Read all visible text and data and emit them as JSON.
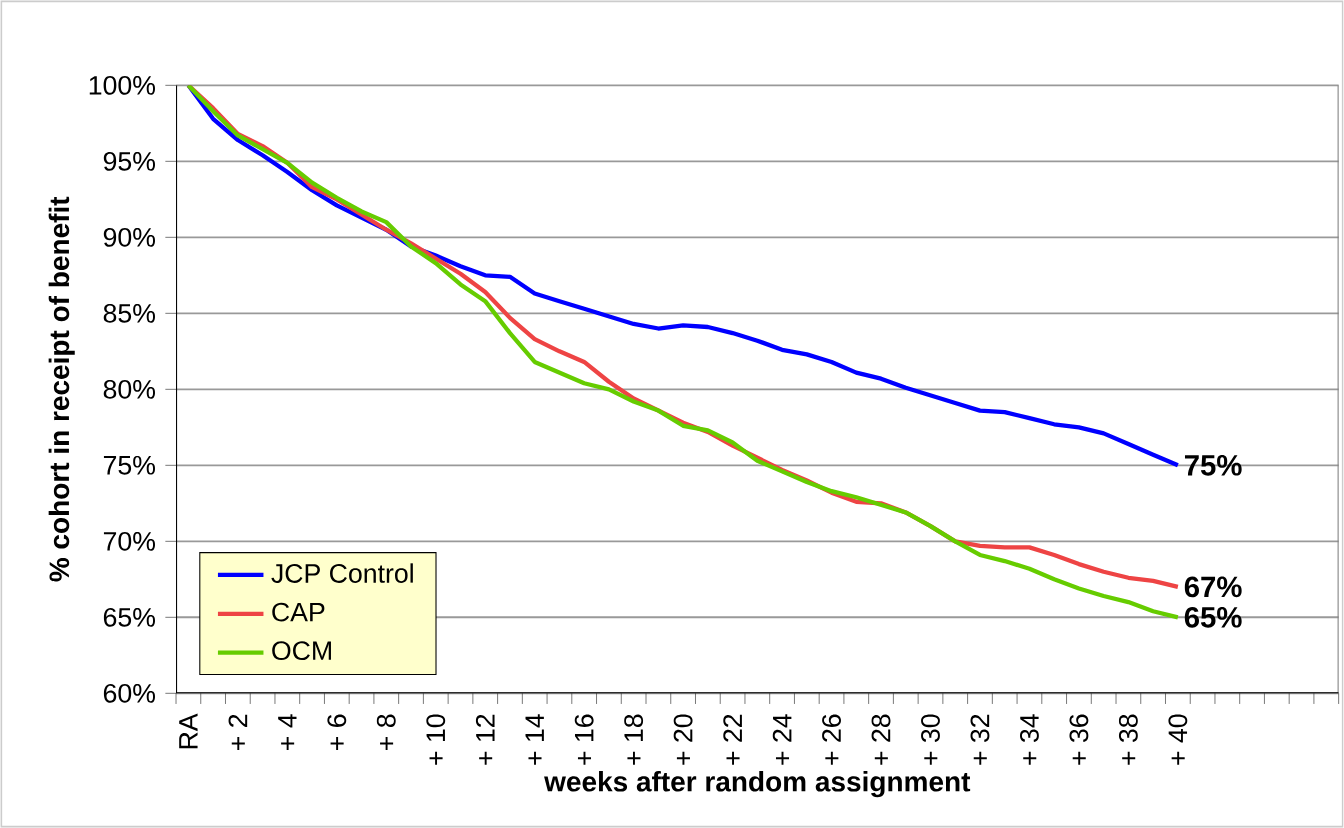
{
  "chart_data": {
    "type": "line",
    "xlabel": "weeks  after random assignment",
    "ylabel": "% cohort in receipt of benefit",
    "categories": [
      "RA",
      null,
      "+ 2",
      null,
      "+ 4",
      null,
      "+ 6",
      null,
      "+ 8",
      null,
      "+ 10",
      null,
      "+ 12",
      null,
      "+ 14",
      null,
      "+ 16",
      null,
      "+ 18",
      null,
      "+ 20",
      null,
      "+ 22",
      null,
      "+ 24",
      null,
      "+ 26",
      null,
      "+ 28",
      null,
      "+ 30",
      null,
      "+ 32",
      null,
      "+ 34",
      null,
      "+ 36",
      null,
      "+ 38",
      null,
      "+ 40",
      null,
      null,
      null,
      null,
      null,
      null
    ],
    "series": [
      {
        "name": "JCP Control",
        "color": "#0000ff",
        "values": [
          100,
          97.8,
          96.4,
          95.4,
          94.3,
          93.1,
          92.1,
          91.3,
          90.5,
          89.4,
          88.8,
          88.1,
          87.5,
          87.4,
          86.3,
          85.8,
          85.3,
          84.8,
          84.3,
          84.0,
          84.2,
          84.1,
          83.7,
          83.2,
          82.6,
          82.3,
          81.8,
          81.1,
          80.7,
          80.1,
          79.6,
          79.1,
          78.6,
          78.5,
          78.1,
          77.7,
          77.5,
          77.1,
          76.4,
          75.7,
          75,
          null,
          null,
          null,
          null,
          null,
          null
        ],
        "value_labels": [
          null,
          null,
          null,
          null,
          null,
          null,
          null,
          null,
          null,
          null,
          null,
          null,
          null,
          null,
          null,
          null,
          null,
          null,
          null,
          null,
          null,
          null,
          null,
          null,
          null,
          null,
          null,
          null,
          null,
          null,
          null,
          null,
          null,
          null,
          null,
          null,
          null,
          null,
          null,
          null,
          "75%",
          null,
          null,
          null,
          null,
          null,
          null
        ]
      },
      {
        "name": "CAP",
        "color": "#ee4444",
        "values": [
          100,
          98.5,
          96.8,
          96.0,
          94.9,
          93.3,
          92.5,
          91.5,
          90.5,
          89.6,
          88.6,
          87.6,
          86.4,
          84.7,
          83.3,
          82.5,
          81.8,
          80.5,
          79.4,
          78.6,
          77.8,
          77.2,
          76.3,
          75.5,
          74.7,
          74.0,
          73.2,
          72.6,
          72.5,
          71.9,
          71.0,
          70.0,
          69.7,
          69.6,
          69.6,
          69.1,
          68.5,
          68.0,
          67.6,
          67.4,
          67,
          null,
          null,
          null,
          null,
          null,
          null
        ],
        "value_labels": [
          null,
          null,
          null,
          null,
          null,
          null,
          null,
          null,
          null,
          null,
          null,
          null,
          null,
          null,
          null,
          null,
          null,
          null,
          null,
          null,
          null,
          null,
          null,
          null,
          null,
          null,
          null,
          null,
          null,
          null,
          null,
          null,
          null,
          null,
          null,
          null,
          null,
          null,
          null,
          null,
          "67%",
          null,
          null,
          null,
          null,
          null,
          null
        ]
      },
      {
        "name": "OCM",
        "color": "#66cc00",
        "values": [
          100,
          98.3,
          96.7,
          95.8,
          94.9,
          93.6,
          92.6,
          91.7,
          91.0,
          89.4,
          88.3,
          86.9,
          85.8,
          83.7,
          81.8,
          81.1,
          80.4,
          80.0,
          79.2,
          78.6,
          77.6,
          77.3,
          76.5,
          75.3,
          74.6,
          73.9,
          73.3,
          72.9,
          72.4,
          71.9,
          71.0,
          70.0,
          69.1,
          68.7,
          68.2,
          67.5,
          66.9,
          66.4,
          66.0,
          65.4,
          65,
          null,
          null,
          null,
          null,
          null,
          null
        ],
        "value_labels": [
          null,
          null,
          null,
          null,
          null,
          null,
          null,
          null,
          null,
          null,
          null,
          null,
          null,
          null,
          null,
          null,
          null,
          null,
          null,
          null,
          null,
          null,
          null,
          null,
          null,
          null,
          null,
          null,
          null,
          null,
          null,
          null,
          null,
          null,
          null,
          null,
          null,
          null,
          null,
          null,
          "65%",
          null,
          null,
          null,
          null,
          null,
          null
        ]
      }
    ],
    "ylim": [
      60,
      100
    ],
    "yticks": [
      {
        "value": 60,
        "label": "60%"
      },
      {
        "value": 65,
        "label": "65%"
      },
      {
        "value": 70,
        "label": "70%"
      },
      {
        "value": 75,
        "label": "75%"
      },
      {
        "value": 80,
        "label": "80%"
      },
      {
        "value": 85,
        "label": "85%"
      },
      {
        "value": 90,
        "label": "90%"
      },
      {
        "value": 95,
        "label": "95%"
      },
      {
        "value": 100,
        "label": "100%"
      }
    ],
    "grid": "y",
    "legend": "bottom left"
  }
}
